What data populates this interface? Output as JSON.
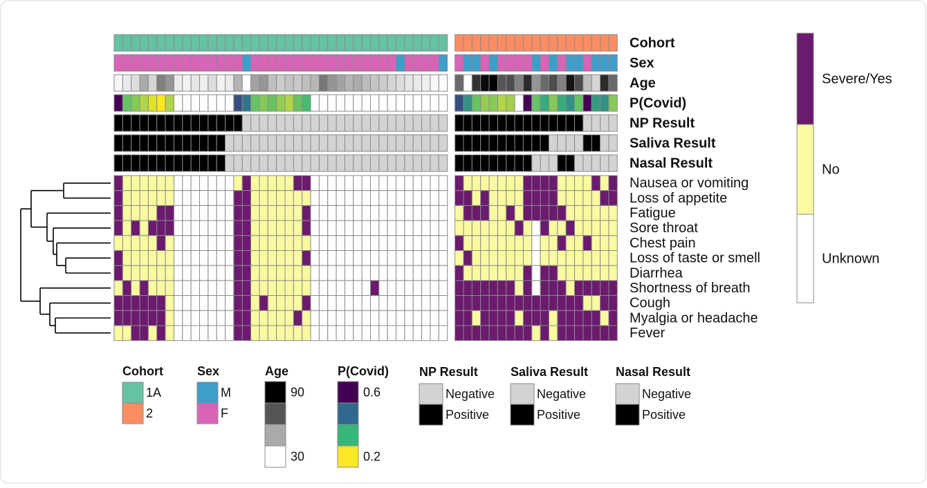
{
  "chart_data": {
    "type": "heatmap",
    "annotations": [
      {
        "name": "Cohort",
        "categories": [
          "1A",
          "2"
        ],
        "colors": [
          "#66c2a5",
          "#fc8d62"
        ],
        "values": [
          0,
          0,
          0,
          0,
          0,
          0,
          0,
          0,
          0,
          0,
          0,
          0,
          0,
          0,
          0,
          0,
          0,
          0,
          0,
          0,
          0,
          0,
          0,
          0,
          0,
          0,
          0,
          0,
          0,
          0,
          0,
          0,
          0,
          0,
          0,
          0,
          0,
          0,
          0,
          1,
          1,
          1,
          1,
          1,
          1,
          1,
          1,
          1,
          1,
          1,
          1,
          1,
          1,
          1,
          1,
          1,
          1,
          1
        ]
      },
      {
        "name": "Sex",
        "categories": [
          "M",
          "F"
        ],
        "colors": [
          "#3d9ec9",
          "#d864b8"
        ],
        "values": [
          1,
          1,
          1,
          1,
          1,
          1,
          1,
          1,
          1,
          1,
          1,
          1,
          1,
          1,
          1,
          0,
          1,
          1,
          1,
          1,
          1,
          1,
          1,
          1,
          1,
          1,
          1,
          1,
          1,
          1,
          1,
          1,
          1,
          0,
          1,
          1,
          1,
          1,
          0,
          1,
          0,
          0,
          1,
          0,
          1,
          1,
          1,
          1,
          0,
          1,
          0,
          1,
          0,
          0,
          1,
          0,
          0,
          0
        ]
      },
      {
        "name": "Age",
        "ticks": [
          90,
          30
        ],
        "colors": [
          "#000000",
          "#ffffff"
        ],
        "values": [
          32,
          35,
          38,
          50,
          40,
          60,
          55,
          35,
          33,
          36,
          34,
          38,
          33,
          35,
          48,
          30,
          52,
          55,
          45,
          42,
          44,
          43,
          45,
          47,
          62,
          55,
          52,
          48,
          50,
          46,
          44,
          42,
          40,
          38,
          36,
          35,
          34,
          32,
          31,
          65,
          30,
          78,
          88,
          90,
          70,
          72,
          60,
          80,
          55,
          65,
          72,
          60,
          85,
          72,
          45,
          40,
          80,
          65
        ]
      },
      {
        "name": "P(Covid)",
        "ticks": [
          0.6,
          0.2
        ],
        "colors": [
          "#440154",
          "#31688e",
          "#35b779",
          "#fde725"
        ],
        "values": [
          0.6,
          0.3,
          0.28,
          0.25,
          0.22,
          0.2,
          0.25,
          null,
          null,
          null,
          null,
          null,
          null,
          null,
          0.5,
          0.45,
          0.3,
          0.28,
          0.3,
          0.27,
          0.25,
          0.3,
          0.32,
          null,
          null,
          null,
          null,
          null,
          null,
          null,
          null,
          null,
          null,
          null,
          null,
          null,
          null,
          null,
          null,
          0.5,
          0.4,
          0.3,
          0.27,
          0.28,
          0.25,
          0.26,
          null,
          0.6,
          0.3,
          0.35,
          0.28,
          0.35,
          0.4,
          0.3,
          0.6,
          0.38,
          0.4,
          0.28
        ]
      },
      {
        "name": "NP Result",
        "categories": [
          "Negative",
          "Positive"
        ],
        "colors": [
          "#d3d3d3",
          "#000000"
        ],
        "values": [
          1,
          1,
          1,
          1,
          1,
          1,
          1,
          1,
          1,
          1,
          1,
          1,
          1,
          1,
          1,
          0,
          0,
          0,
          0,
          0,
          0,
          0,
          0,
          0,
          0,
          0,
          0,
          0,
          0,
          0,
          0,
          0,
          0,
          0,
          0,
          0,
          0,
          0,
          0,
          1,
          1,
          1,
          1,
          1,
          1,
          1,
          1,
          1,
          1,
          1,
          1,
          1,
          1,
          1,
          0,
          0,
          0,
          0
        ]
      },
      {
        "name": "Saliva Result",
        "categories": [
          "Negative",
          "Positive"
        ],
        "colors": [
          "#d3d3d3",
          "#000000"
        ],
        "values": [
          1,
          1,
          1,
          1,
          1,
          1,
          1,
          1,
          1,
          1,
          1,
          1,
          1,
          0,
          0,
          0,
          0,
          0,
          0,
          0,
          0,
          0,
          0,
          0,
          0,
          0,
          0,
          0,
          0,
          0,
          0,
          0,
          0,
          0,
          0,
          0,
          0,
          0,
          0,
          1,
          1,
          1,
          1,
          1,
          1,
          1,
          1,
          1,
          1,
          1,
          0,
          0,
          0,
          0,
          1,
          1,
          0,
          0
        ]
      },
      {
        "name": "Nasal Result",
        "categories": [
          "Negative",
          "Positive"
        ],
        "colors": [
          "#d3d3d3",
          "#000000"
        ],
        "values": [
          1,
          1,
          1,
          1,
          1,
          1,
          1,
          1,
          1,
          1,
          1,
          1,
          1,
          0,
          0,
          0,
          0,
          0,
          0,
          0,
          0,
          0,
          0,
          0,
          0,
          0,
          0,
          0,
          0,
          0,
          0,
          0,
          0,
          0,
          0,
          0,
          0,
          0,
          0,
          1,
          1,
          1,
          1,
          1,
          1,
          1,
          1,
          1,
          0,
          0,
          0,
          1,
          1,
          0,
          0,
          0,
          0,
          0
        ]
      }
    ],
    "rows": [
      "Nausea or vomiting",
      "Loss of appetite",
      "Fatigue",
      "Sore throat",
      "Chest pain",
      "Loss of taste or smell",
      "Diarrhea",
      "Shortness of breath",
      "Cough",
      "Myalgia or headache",
      "Fever"
    ],
    "categories": [
      "Severe/Yes",
      "No",
      "Unknown"
    ],
    "colors": [
      "#6b1a6e",
      "#fafaa0",
      "#ffffff"
    ],
    "values": [
      [
        0,
        1,
        1,
        1,
        1,
        1,
        1,
        2,
        2,
        2,
        2,
        2,
        2,
        2,
        1,
        0,
        1,
        1,
        1,
        1,
        1,
        0,
        0,
        2,
        2,
        2,
        2,
        2,
        2,
        2,
        2,
        2,
        2,
        2,
        2,
        2,
        2,
        2,
        2,
        0,
        1,
        1,
        1,
        1,
        1,
        1,
        1,
        0,
        0,
        0,
        0,
        1,
        1,
        1,
        1,
        0,
        1,
        0
      ],
      [
        0,
        1,
        1,
        1,
        1,
        1,
        1,
        2,
        2,
        2,
        2,
        2,
        2,
        2,
        0,
        0,
        1,
        1,
        1,
        1,
        1,
        1,
        1,
        2,
        2,
        2,
        2,
        2,
        2,
        2,
        2,
        2,
        2,
        2,
        2,
        2,
        2,
        2,
        2,
        0,
        0,
        1,
        0,
        1,
        1,
        1,
        1,
        0,
        0,
        0,
        0,
        1,
        1,
        1,
        1,
        1,
        0,
        0
      ],
      [
        0,
        1,
        1,
        1,
        1,
        0,
        0,
        2,
        2,
        2,
        2,
        2,
        2,
        2,
        0,
        0,
        1,
        1,
        1,
        1,
        1,
        1,
        0,
        2,
        2,
        2,
        2,
        2,
        2,
        2,
        2,
        2,
        2,
        2,
        2,
        2,
        2,
        2,
        2,
        1,
        0,
        0,
        0,
        1,
        1,
        0,
        1,
        0,
        0,
        0,
        0,
        0,
        1,
        1,
        1,
        1,
        1,
        1
      ],
      [
        0,
        1,
        0,
        1,
        0,
        0,
        0,
        2,
        2,
        2,
        2,
        2,
        2,
        2,
        0,
        0,
        1,
        1,
        1,
        1,
        1,
        1,
        0,
        2,
        2,
        2,
        2,
        2,
        2,
        2,
        2,
        2,
        2,
        2,
        2,
        2,
        2,
        2,
        2,
        1,
        1,
        1,
        1,
        1,
        1,
        1,
        0,
        1,
        2,
        0,
        1,
        1,
        0,
        1,
        1,
        1,
        1,
        1
      ],
      [
        1,
        1,
        1,
        1,
        1,
        0,
        1,
        2,
        2,
        2,
        2,
        2,
        2,
        2,
        0,
        0,
        1,
        1,
        1,
        1,
        1,
        1,
        1,
        2,
        2,
        2,
        2,
        2,
        2,
        2,
        2,
        2,
        2,
        2,
        2,
        2,
        2,
        2,
        2,
        0,
        1,
        1,
        1,
        1,
        1,
        1,
        1,
        1,
        2,
        1,
        1,
        0,
        1,
        1,
        0,
        1,
        1,
        1
      ],
      [
        0,
        1,
        1,
        1,
        1,
        1,
        1,
        2,
        2,
        2,
        2,
        2,
        2,
        2,
        0,
        0,
        1,
        1,
        1,
        1,
        1,
        1,
        0,
        2,
        2,
        2,
        2,
        2,
        2,
        2,
        2,
        2,
        2,
        2,
        2,
        2,
        2,
        2,
        2,
        1,
        0,
        1,
        1,
        1,
        1,
        1,
        1,
        1,
        2,
        1,
        1,
        1,
        1,
        1,
        1,
        1,
        1,
        1
      ],
      [
        0,
        1,
        1,
        1,
        1,
        1,
        1,
        2,
        2,
        2,
        2,
        2,
        2,
        2,
        0,
        0,
        1,
        1,
        1,
        1,
        1,
        1,
        1,
        2,
        2,
        2,
        2,
        2,
        2,
        2,
        2,
        2,
        2,
        2,
        2,
        2,
        2,
        2,
        2,
        0,
        1,
        1,
        1,
        1,
        1,
        1,
        1,
        0,
        2,
        0,
        0,
        1,
        1,
        1,
        1,
        1,
        1,
        1
      ],
      [
        1,
        0,
        1,
        0,
        1,
        1,
        1,
        2,
        2,
        2,
        2,
        2,
        2,
        2,
        0,
        0,
        1,
        1,
        1,
        1,
        1,
        1,
        1,
        2,
        2,
        2,
        2,
        2,
        2,
        2,
        0,
        2,
        2,
        2,
        2,
        2,
        2,
        2,
        2,
        0,
        0,
        0,
        0,
        0,
        0,
        0,
        1,
        0,
        2,
        0,
        0,
        0,
        1,
        0,
        0,
        0,
        0,
        0
      ],
      [
        0,
        0,
        0,
        0,
        0,
        0,
        1,
        2,
        2,
        2,
        2,
        2,
        2,
        2,
        0,
        0,
        1,
        0,
        1,
        1,
        1,
        1,
        0,
        2,
        2,
        2,
        2,
        2,
        2,
        2,
        2,
        2,
        2,
        2,
        2,
        2,
        2,
        2,
        2,
        0,
        0,
        0,
        0,
        0,
        0,
        0,
        0,
        0,
        0,
        0,
        0,
        0,
        0,
        0,
        1,
        1,
        0,
        0
      ],
      [
        0,
        0,
        0,
        0,
        0,
        0,
        1,
        2,
        2,
        2,
        2,
        2,
        2,
        2,
        0,
        0,
        1,
        1,
        1,
        1,
        1,
        0,
        1,
        2,
        2,
        2,
        2,
        2,
        2,
        2,
        2,
        2,
        2,
        2,
        2,
        2,
        2,
        2,
        2,
        0,
        0,
        1,
        0,
        0,
        0,
        0,
        1,
        0,
        0,
        0,
        1,
        0,
        0,
        0,
        0,
        0,
        1,
        0
      ],
      [
        1,
        1,
        0,
        0,
        1,
        0,
        1,
        2,
        2,
        2,
        2,
        2,
        2,
        2,
        0,
        0,
        1,
        1,
        1,
        1,
        1,
        1,
        1,
        2,
        2,
        2,
        2,
        2,
        2,
        2,
        2,
        2,
        2,
        2,
        2,
        2,
        2,
        2,
        2,
        0,
        0,
        0,
        0,
        0,
        0,
        0,
        0,
        0,
        1,
        0,
        1,
        0,
        0,
        0,
        0,
        0,
        0,
        0
      ]
    ]
  }
}
